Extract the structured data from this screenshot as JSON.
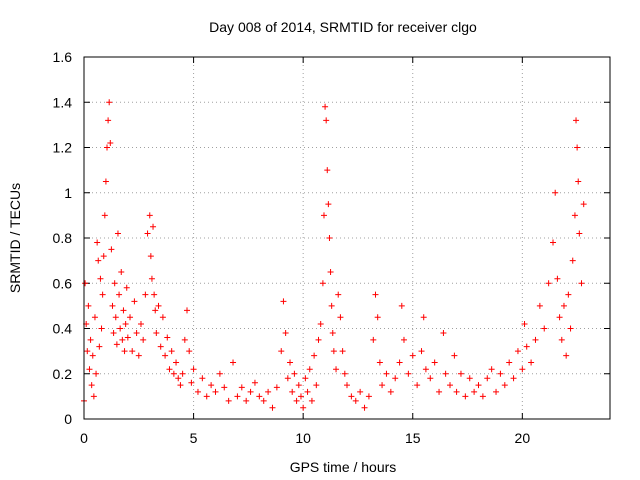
{
  "chart_data": {
    "type": "scatter",
    "title": "Day 008 of 2014, SRMTID for receiver clgo",
    "xlabel": "GPS time / hours",
    "ylabel": "SRMTID / TECUs",
    "xlim": [
      0,
      24
    ],
    "ylim": [
      0,
      1.6
    ],
    "x_ticks": [
      0,
      5,
      10,
      15,
      20
    ],
    "y_ticks": [
      0,
      0.2,
      0.4,
      0.6,
      0.8,
      1,
      1.2,
      1.4,
      1.6
    ],
    "x_tick_labels": [
      "0",
      "5",
      "10",
      "15",
      "20"
    ],
    "y_tick_labels": [
      "0",
      "0.2",
      "0.4",
      "0.6",
      "0.8",
      "1",
      "1.2",
      "1.4",
      "1.6"
    ],
    "grid": true,
    "marker": "+",
    "color": "#ff0000",
    "series": [
      {
        "name": "SRMTID",
        "points": [
          [
            0.0,
            0.08
          ],
          [
            0.05,
            0.6
          ],
          [
            0.1,
            0.42
          ],
          [
            0.15,
            0.3
          ],
          [
            0.2,
            0.5
          ],
          [
            0.25,
            0.22
          ],
          [
            0.3,
            0.35
          ],
          [
            0.35,
            0.15
          ],
          [
            0.4,
            0.28
          ],
          [
            0.45,
            0.1
          ],
          [
            0.5,
            0.45
          ],
          [
            0.55,
            0.2
          ],
          [
            0.6,
            0.78
          ],
          [
            0.65,
            0.7
          ],
          [
            0.7,
            0.32
          ],
          [
            0.75,
            0.62
          ],
          [
            0.8,
            0.4
          ],
          [
            0.85,
            0.55
          ],
          [
            0.9,
            0.72
          ],
          [
            0.95,
            0.9
          ],
          [
            1.0,
            1.05
          ],
          [
            1.05,
            1.2
          ],
          [
            1.1,
            1.32
          ],
          [
            1.15,
            1.4
          ],
          [
            1.2,
            1.22
          ],
          [
            1.25,
            0.75
          ],
          [
            1.3,
            0.5
          ],
          [
            1.35,
            0.38
          ],
          [
            1.4,
            0.6
          ],
          [
            1.45,
            0.45
          ],
          [
            1.5,
            0.33
          ],
          [
            1.55,
            0.82
          ],
          [
            1.6,
            0.55
          ],
          [
            1.65,
            0.4
          ],
          [
            1.7,
            0.65
          ],
          [
            1.75,
            0.35
          ],
          [
            1.8,
            0.48
          ],
          [
            1.85,
            0.3
          ],
          [
            1.9,
            0.42
          ],
          [
            1.95,
            0.58
          ],
          [
            2.0,
            0.36
          ],
          [
            2.1,
            0.45
          ],
          [
            2.2,
            0.3
          ],
          [
            2.3,
            0.52
          ],
          [
            2.4,
            0.38
          ],
          [
            2.5,
            0.28
          ],
          [
            2.6,
            0.42
          ],
          [
            2.7,
            0.35
          ],
          [
            2.8,
            0.55
          ],
          [
            2.9,
            0.82
          ],
          [
            3.0,
            0.9
          ],
          [
            3.05,
            0.72
          ],
          [
            3.1,
            0.62
          ],
          [
            3.15,
            0.85
          ],
          [
            3.2,
            0.55
          ],
          [
            3.25,
            0.48
          ],
          [
            3.3,
            0.38
          ],
          [
            3.4,
            0.5
          ],
          [
            3.5,
            0.32
          ],
          [
            3.6,
            0.45
          ],
          [
            3.7,
            0.28
          ],
          [
            3.8,
            0.36
          ],
          [
            3.9,
            0.22
          ],
          [
            4.0,
            0.3
          ],
          [
            4.1,
            0.2
          ],
          [
            4.2,
            0.25
          ],
          [
            4.3,
            0.18
          ],
          [
            4.4,
            0.15
          ],
          [
            4.5,
            0.2
          ],
          [
            4.6,
            0.35
          ],
          [
            4.7,
            0.48
          ],
          [
            4.8,
            0.3
          ],
          [
            4.9,
            0.16
          ],
          [
            5.0,
            0.22
          ],
          [
            5.2,
            0.12
          ],
          [
            5.4,
            0.18
          ],
          [
            5.6,
            0.1
          ],
          [
            5.8,
            0.15
          ],
          [
            6.0,
            0.12
          ],
          [
            6.2,
            0.2
          ],
          [
            6.4,
            0.14
          ],
          [
            6.6,
            0.08
          ],
          [
            6.8,
            0.25
          ],
          [
            7.0,
            0.1
          ],
          [
            7.2,
            0.14
          ],
          [
            7.4,
            0.08
          ],
          [
            7.6,
            0.12
          ],
          [
            7.8,
            0.16
          ],
          [
            8.0,
            0.1
          ],
          [
            8.2,
            0.08
          ],
          [
            8.4,
            0.12
          ],
          [
            8.6,
            0.05
          ],
          [
            8.8,
            0.14
          ],
          [
            9.0,
            0.3
          ],
          [
            9.1,
            0.52
          ],
          [
            9.2,
            0.38
          ],
          [
            9.3,
            0.18
          ],
          [
            9.4,
            0.25
          ],
          [
            9.5,
            0.12
          ],
          [
            9.6,
            0.2
          ],
          [
            9.7,
            0.08
          ],
          [
            9.8,
            0.15
          ],
          [
            9.9,
            0.1
          ],
          [
            10.0,
            0.05
          ],
          [
            10.1,
            0.18
          ],
          [
            10.2,
            0.12
          ],
          [
            10.3,
            0.22
          ],
          [
            10.4,
            0.08
          ],
          [
            10.5,
            0.28
          ],
          [
            10.6,
            0.15
          ],
          [
            10.7,
            0.35
          ],
          [
            10.8,
            0.42
          ],
          [
            10.9,
            0.6
          ],
          [
            10.95,
            0.9
          ],
          [
            11.0,
            1.38
          ],
          [
            11.05,
            1.32
          ],
          [
            11.1,
            1.1
          ],
          [
            11.15,
            0.95
          ],
          [
            11.2,
            0.8
          ],
          [
            11.25,
            0.65
          ],
          [
            11.3,
            0.5
          ],
          [
            11.35,
            0.38
          ],
          [
            11.4,
            0.3
          ],
          [
            11.5,
            0.22
          ],
          [
            11.6,
            0.55
          ],
          [
            11.7,
            0.45
          ],
          [
            11.8,
            0.3
          ],
          [
            11.9,
            0.2
          ],
          [
            12.0,
            0.15
          ],
          [
            12.2,
            0.1
          ],
          [
            12.4,
            0.08
          ],
          [
            12.6,
            0.12
          ],
          [
            12.8,
            0.05
          ],
          [
            13.0,
            0.1
          ],
          [
            13.2,
            0.35
          ],
          [
            13.3,
            0.55
          ],
          [
            13.4,
            0.45
          ],
          [
            13.5,
            0.25
          ],
          [
            13.6,
            0.15
          ],
          [
            13.8,
            0.2
          ],
          [
            14.0,
            0.12
          ],
          [
            14.2,
            0.18
          ],
          [
            14.4,
            0.25
          ],
          [
            14.5,
            0.5
          ],
          [
            14.6,
            0.35
          ],
          [
            14.8,
            0.2
          ],
          [
            15.0,
            0.28
          ],
          [
            15.2,
            0.15
          ],
          [
            15.4,
            0.3
          ],
          [
            15.5,
            0.45
          ],
          [
            15.6,
            0.22
          ],
          [
            15.8,
            0.18
          ],
          [
            16.0,
            0.25
          ],
          [
            16.2,
            0.12
          ],
          [
            16.4,
            0.38
          ],
          [
            16.5,
            0.2
          ],
          [
            16.7,
            0.15
          ],
          [
            16.9,
            0.28
          ],
          [
            17.0,
            0.12
          ],
          [
            17.2,
            0.2
          ],
          [
            17.4,
            0.1
          ],
          [
            17.6,
            0.18
          ],
          [
            17.8,
            0.12
          ],
          [
            18.0,
            0.15
          ],
          [
            18.2,
            0.1
          ],
          [
            18.4,
            0.18
          ],
          [
            18.6,
            0.22
          ],
          [
            18.8,
            0.12
          ],
          [
            19.0,
            0.2
          ],
          [
            19.2,
            0.15
          ],
          [
            19.4,
            0.25
          ],
          [
            19.6,
            0.18
          ],
          [
            19.8,
            0.3
          ],
          [
            20.0,
            0.22
          ],
          [
            20.1,
            0.42
          ],
          [
            20.2,
            0.32
          ],
          [
            20.4,
            0.25
          ],
          [
            20.6,
            0.35
          ],
          [
            20.8,
            0.5
          ],
          [
            21.0,
            0.4
          ],
          [
            21.2,
            0.6
          ],
          [
            21.4,
            0.78
          ],
          [
            21.5,
            1.0
          ],
          [
            21.6,
            0.62
          ],
          [
            21.7,
            0.45
          ],
          [
            21.8,
            0.35
          ],
          [
            21.9,
            0.5
          ],
          [
            22.0,
            0.28
          ],
          [
            22.1,
            0.55
          ],
          [
            22.2,
            0.4
          ],
          [
            22.3,
            0.7
          ],
          [
            22.4,
            0.9
          ],
          [
            22.45,
            1.32
          ],
          [
            22.5,
            1.2
          ],
          [
            22.55,
            1.05
          ],
          [
            22.6,
            0.82
          ],
          [
            22.7,
            0.6
          ],
          [
            22.8,
            0.95
          ]
        ]
      }
    ]
  }
}
